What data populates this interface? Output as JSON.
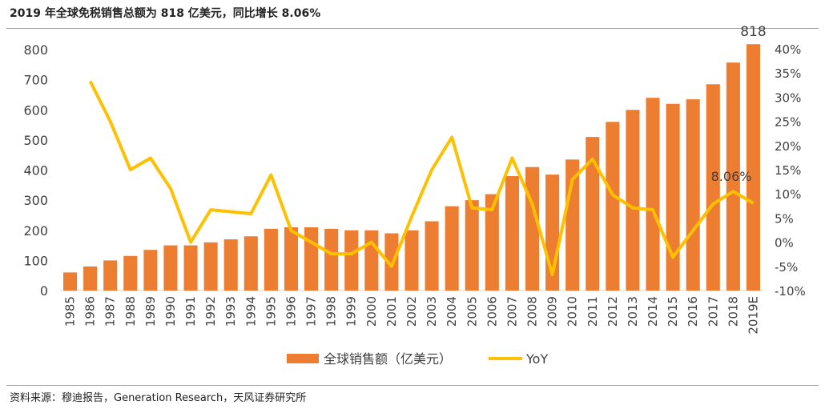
{
  "header": {
    "title": "2019 年全球免税销售总额为 818 亿美元，同比增长 8.06%"
  },
  "footer": {
    "source": "资料来源：穆迪报告，Generation Research，天风证券研究所"
  },
  "chart_data": {
    "type": "bar+line",
    "title": "2019 年全球免税销售总额为 818 亿美元，同比增长 8.06%",
    "categories": [
      "1985",
      "1986",
      "1987",
      "1988",
      "1989",
      "1990",
      "1991",
      "1992",
      "1993",
      "1994",
      "1995",
      "1996",
      "1997",
      "1998",
      "1999",
      "2000",
      "2001",
      "2002",
      "2003",
      "2004",
      "2005",
      "2006",
      "2007",
      "2008",
      "2009",
      "2010",
      "2011",
      "2012",
      "2013",
      "2014",
      "2015",
      "2016",
      "2017",
      "2018",
      "2019E"
    ],
    "series": [
      {
        "name": "全球销售额（亿美元）",
        "type": "bar",
        "axis": "left",
        "color": "#ed7d31",
        "values": [
          60,
          80,
          100,
          115,
          135,
          150,
          150,
          160,
          170,
          180,
          205,
          210,
          210,
          205,
          200,
          200,
          190,
          200,
          230,
          280,
          300,
          320,
          380,
          410,
          385,
          435,
          510,
          560,
          600,
          640,
          620,
          635,
          685,
          757,
          818
        ]
      },
      {
        "name": "YoY",
        "type": "line",
        "axis": "right",
        "color": "#ffc000",
        "values": [
          null,
          33.3,
          25.0,
          15.0,
          17.4,
          11.1,
          0.0,
          6.7,
          6.3,
          5.9,
          13.9,
          2.4,
          0.0,
          -2.4,
          -2.4,
          0.0,
          -5.0,
          5.3,
          15.0,
          21.7,
          7.1,
          6.7,
          17.4,
          7.9,
          -6.7,
          13.0,
          17.2,
          9.8,
          7.1,
          6.7,
          -3.1,
          2.4,
          7.9,
          10.5,
          8.06
        ]
      }
    ],
    "left_axis": {
      "min": 0,
      "max": 800,
      "step": 100,
      "ticks": [
        "0",
        "100",
        "200",
        "300",
        "400",
        "500",
        "600",
        "700",
        "800"
      ]
    },
    "right_axis": {
      "min": -10,
      "max": 40,
      "step": 5,
      "ticks": [
        "-10%",
        "-5%",
        "0%",
        "5%",
        "10%",
        "15%",
        "20%",
        "25%",
        "30%",
        "35%",
        "40%"
      ]
    },
    "annotations": {
      "last_bar_label": "818",
      "last_yoy_label": "8.06%"
    },
    "legend": {
      "placement": "bottom",
      "items": [
        "全球销售额（亿美元）",
        "YoY"
      ]
    },
    "grid": false
  }
}
